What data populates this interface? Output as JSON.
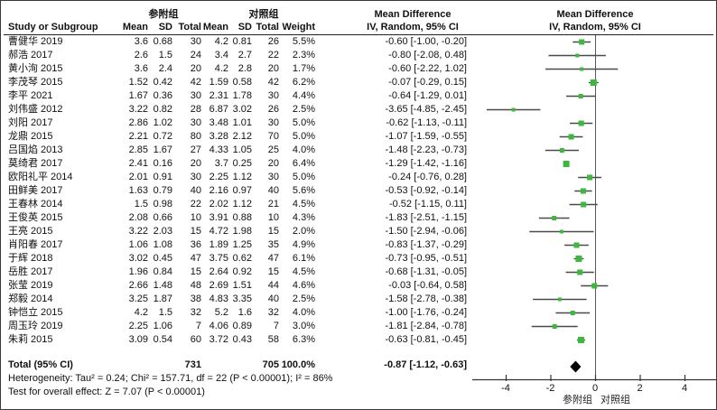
{
  "figure": {
    "group1_label": "参附组",
    "group2_label": "对照组",
    "effect_header": "Mean Difference",
    "effect_subheader": "IV, Random, 95% CI",
    "col_headers": {
      "study": "Study or Subgroup",
      "mean": "Mean",
      "sd": "SD",
      "total": "Total",
      "weight": "Weight"
    },
    "rows": [
      {
        "study": "曹健华 2019",
        "m1": "3.6",
        "sd1": "0.68",
        "n1": "30",
        "m2": "4.2",
        "sd2": "0.81",
        "n2": "26",
        "weight": "5.5%",
        "ci": "-0.60 [-1.00, -0.20]"
      },
      {
        "study": "郝浩 2017",
        "m1": "2.6",
        "sd1": "1.5",
        "n1": "24",
        "m2": "3.4",
        "sd2": "2.7",
        "n2": "22",
        "weight": "2.3%",
        "ci": "-0.80 [-2.08, 0.48]"
      },
      {
        "study": "黄小洵 2015",
        "m1": "3.6",
        "sd1": "2.4",
        "n1": "20",
        "m2": "4.2",
        "sd2": "2.8",
        "n2": "20",
        "weight": "1.7%",
        "ci": "-0.60 [-2.22, 1.02]"
      },
      {
        "study": "李茂琴 2015",
        "m1": "1.52",
        "sd1": "0.42",
        "n1": "42",
        "m2": "1.59",
        "sd2": "0.58",
        "n2": "42",
        "weight": "6.2%",
        "ci": "-0.07 [-0.29, 0.15]"
      },
      {
        "study": "李平 2021",
        "m1": "1.67",
        "sd1": "0.36",
        "n1": "30",
        "m2": "2.31",
        "sd2": "1.78",
        "n2": "30",
        "weight": "4.4%",
        "ci": "-0.64 [-1.29, 0.01]"
      },
      {
        "study": "刘伟盛 2012",
        "m1": "3.22",
        "sd1": "0.82",
        "n1": "28",
        "m2": "6.87",
        "sd2": "3.02",
        "n2": "26",
        "weight": "2.5%",
        "ci": "-3.65 [-4.85, -2.45]"
      },
      {
        "study": "刘阳 2017",
        "m1": "2.86",
        "sd1": "1.02",
        "n1": "30",
        "m2": "3.48",
        "sd2": "1.01",
        "n2": "30",
        "weight": "5.0%",
        "ci": "-0.62 [-1.13, -0.11]"
      },
      {
        "study": "龙鼎 2015",
        "m1": "2.21",
        "sd1": "0.72",
        "n1": "80",
        "m2": "3.28",
        "sd2": "2.12",
        "n2": "70",
        "weight": "5.0%",
        "ci": "-1.07 [-1.59, -0.55]"
      },
      {
        "study": "吕国焰 2013",
        "m1": "2.85",
        "sd1": "1.67",
        "n1": "27",
        "m2": "4.33",
        "sd2": "1.05",
        "n2": "25",
        "weight": "4.0%",
        "ci": "-1.48 [-2.23, -0.73]"
      },
      {
        "study": "莫绮君 2017",
        "m1": "2.41",
        "sd1": "0.16",
        "n1": "20",
        "m2": "3.7",
        "sd2": "0.25",
        "n2": "20",
        "weight": "6.4%",
        "ci": "-1.29 [-1.42, -1.16]"
      },
      {
        "study": "欧阳礼平 2014",
        "m1": "2.01",
        "sd1": "0.91",
        "n1": "30",
        "m2": "2.25",
        "sd2": "1.12",
        "n2": "30",
        "weight": "5.0%",
        "ci": "-0.24 [-0.76, 0.28]"
      },
      {
        "study": "田鲜美 2017",
        "m1": "1.63",
        "sd1": "0.79",
        "n1": "40",
        "m2": "2.16",
        "sd2": "0.97",
        "n2": "40",
        "weight": "5.6%",
        "ci": "-0.53 [-0.92, -0.14]"
      },
      {
        "study": "王春林 2014",
        "m1": "1.5",
        "sd1": "0.98",
        "n1": "22",
        "m2": "2.02",
        "sd2": "1.12",
        "n2": "21",
        "weight": "4.5%",
        "ci": "-0.52 [-1.15, 0.11]"
      },
      {
        "study": "王俊英 2015",
        "m1": "2.08",
        "sd1": "0.66",
        "n1": "10",
        "m2": "3.91",
        "sd2": "0.88",
        "n2": "10",
        "weight": "4.3%",
        "ci": "-1.83 [-2.51, -1.15]"
      },
      {
        "study": "王亮 2015",
        "m1": "3.22",
        "sd1": "2.03",
        "n1": "15",
        "m2": "4.72",
        "sd2": "1.98",
        "n2": "15",
        "weight": "2.0%",
        "ci": "-1.50 [-2.94, -0.06]"
      },
      {
        "study": "肖阳春 2017",
        "m1": "1.06",
        "sd1": "1.08",
        "n1": "36",
        "m2": "1.89",
        "sd2": "1.25",
        "n2": "35",
        "weight": "4.9%",
        "ci": "-0.83 [-1.37, -0.29]"
      },
      {
        "study": "于辉 2018",
        "m1": "3.02",
        "sd1": "0.45",
        "n1": "47",
        "m2": "3.75",
        "sd2": "0.62",
        "n2": "47",
        "weight": "6.1%",
        "ci": "-0.73 [-0.95, -0.51]"
      },
      {
        "study": "岳胜 2017",
        "m1": "1.96",
        "sd1": "0.84",
        "n1": "15",
        "m2": "2.64",
        "sd2": "0.92",
        "n2": "15",
        "weight": "4.5%",
        "ci": "-0.68 [-1.31, -0.05]"
      },
      {
        "study": "张莹 2019",
        "m1": "2.66",
        "sd1": "1.48",
        "n1": "48",
        "m2": "2.69",
        "sd2": "1.51",
        "n2": "44",
        "weight": "4.6%",
        "ci": "-0.03 [-0.64, 0.58]"
      },
      {
        "study": "郑毅 2014",
        "m1": "3.25",
        "sd1": "1.87",
        "n1": "38",
        "m2": "4.83",
        "sd2": "3.35",
        "n2": "40",
        "weight": "2.5%",
        "ci": "-1.58 [-2.78, -0.38]"
      },
      {
        "study": "钟恺立 2015",
        "m1": "4.2",
        "sd1": "1.5",
        "n1": "32",
        "m2": "5.2",
        "sd2": "1.6",
        "n2": "32",
        "weight": "4.0%",
        "ci": "-1.00 [-1.76, -0.24]"
      },
      {
        "study": "周玉玲 2019",
        "m1": "2.25",
        "sd1": "1.06",
        "n1": "7",
        "m2": "4.06",
        "sd2": "0.89",
        "n2": "7",
        "weight": "3.0%",
        "ci": "-1.81 [-2.84, -0.78]"
      },
      {
        "study": "朱莉 2015",
        "m1": "3.09",
        "sd1": "0.54",
        "n1": "60",
        "m2": "3.72",
        "sd2": "0.43",
        "n2": "58",
        "weight": "6.3%",
        "ci": "-0.63 [-0.81, -0.45]"
      }
    ],
    "total_row": {
      "label": "Total (95% CI)",
      "n1": "731",
      "n2": "705",
      "weight": "100.0%",
      "ci": "-0.87 [-1.12, -0.63]"
    },
    "heterogeneity": "Heterogeneity: Tau² = 0.24; Chi² = 157.71, df = 22 (P < 0.00001); I² = 86%",
    "overall_effect": "Test for overall effect: Z = 7.07 (P < 0.00001)",
    "favours_left": "参附组",
    "favours_right": "对照组",
    "colors": {
      "marker": "#3cb83c",
      "ci_line": "#4a4a4a",
      "diamond": "#000000",
      "axis": "#333333"
    }
  },
  "chart_data": {
    "type": "forest",
    "title": "Mean Difference",
    "effect_measure": "IV, Random, 95% CI",
    "x_ticks": [
      -4,
      -2,
      0,
      2,
      4
    ],
    "xlim": [
      -5.5,
      5.5
    ],
    "zero_line": 0,
    "favours_left": "参附组",
    "favours_right": "对照组",
    "studies": [
      {
        "name": "曹健华 2019",
        "est": -0.6,
        "lo": -1.0,
        "hi": -0.2,
        "weight": 5.5
      },
      {
        "name": "郝浩 2017",
        "est": -0.8,
        "lo": -2.08,
        "hi": 0.48,
        "weight": 2.3
      },
      {
        "name": "黄小洵 2015",
        "est": -0.6,
        "lo": -2.22,
        "hi": 1.02,
        "weight": 1.7
      },
      {
        "name": "李茂琴 2015",
        "est": -0.07,
        "lo": -0.29,
        "hi": 0.15,
        "weight": 6.2
      },
      {
        "name": "李平 2021",
        "est": -0.64,
        "lo": -1.29,
        "hi": 0.01,
        "weight": 4.4
      },
      {
        "name": "刘伟盛 2012",
        "est": -3.65,
        "lo": -4.85,
        "hi": -2.45,
        "weight": 2.5
      },
      {
        "name": "刘阳 2017",
        "est": -0.62,
        "lo": -1.13,
        "hi": -0.11,
        "weight": 5.0
      },
      {
        "name": "龙鼎 2015",
        "est": -1.07,
        "lo": -1.59,
        "hi": -0.55,
        "weight": 5.0
      },
      {
        "name": "吕国焰 2013",
        "est": -1.48,
        "lo": -2.23,
        "hi": -0.73,
        "weight": 4.0
      },
      {
        "name": "莫绮君 2017",
        "est": -1.29,
        "lo": -1.42,
        "hi": -1.16,
        "weight": 6.4
      },
      {
        "name": "欧阳礼平 2014",
        "est": -0.24,
        "lo": -0.76,
        "hi": 0.28,
        "weight": 5.0
      },
      {
        "name": "田鲜美 2017",
        "est": -0.53,
        "lo": -0.92,
        "hi": -0.14,
        "weight": 5.6
      },
      {
        "name": "王春林 2014",
        "est": -0.52,
        "lo": -1.15,
        "hi": 0.11,
        "weight": 4.5
      },
      {
        "name": "王俊英 2015",
        "est": -1.83,
        "lo": -2.51,
        "hi": -1.15,
        "weight": 4.3
      },
      {
        "name": "王亮 2015",
        "est": -1.5,
        "lo": -2.94,
        "hi": -0.06,
        "weight": 2.0
      },
      {
        "name": "肖阳春 2017",
        "est": -0.83,
        "lo": -1.37,
        "hi": -0.29,
        "weight": 4.9
      },
      {
        "name": "于辉 2018",
        "est": -0.73,
        "lo": -0.95,
        "hi": -0.51,
        "weight": 6.1
      },
      {
        "name": "岳胜 2017",
        "est": -0.68,
        "lo": -1.31,
        "hi": -0.05,
        "weight": 4.5
      },
      {
        "name": "张莹 2019",
        "est": -0.03,
        "lo": -0.64,
        "hi": 0.58,
        "weight": 4.6
      },
      {
        "name": "郑毅 2014",
        "est": -1.58,
        "lo": -2.78,
        "hi": -0.38,
        "weight": 2.5
      },
      {
        "name": "钟恺立 2015",
        "est": -1.0,
        "lo": -1.76,
        "hi": -0.24,
        "weight": 4.0
      },
      {
        "name": "周玉玲 2019",
        "est": -1.81,
        "lo": -2.84,
        "hi": -0.78,
        "weight": 3.0
      },
      {
        "name": "朱莉 2015",
        "est": -0.63,
        "lo": -0.81,
        "hi": -0.45,
        "weight": 6.3
      }
    ],
    "total": {
      "label": "Total (95% CI)",
      "est": -0.87,
      "lo": -1.12,
      "hi": -0.63,
      "weight": 100.0
    }
  }
}
